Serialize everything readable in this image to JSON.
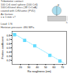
{
  "chart_data": {
    "type": "scatter",
    "xlabel": "Rα roughness (nm)",
    "ylabel": "Friction coefficient",
    "annotations": [
      "Tribometer contact:\n100 Cr6 steel sphere (100 Cr6)\n100Cr6/steel discs (38 CrCoA)\ncoated with CrN/some (PVD)\nAir friction:\nv = 1 mm·s⁻¹\n\nLoad: 1 N\nHertzian pressure: 480 MPa",
      "F",
      "h"
    ],
    "xlim": [
      10,
      75
    ],
    "ylim": [
      0.1,
      0.9
    ],
    "xticks": [
      20,
      30,
      40,
      50,
      60,
      70
    ],
    "yticks": [
      0.2,
      0.3,
      0.4,
      0.5,
      0.6,
      0.7,
      0.8
    ],
    "series": [
      {
        "type": "line",
        "x": [
          10,
          72
        ],
        "values": [
          0.87,
          0.13
        ],
        "color": "#66ddff",
        "line_style": "dashed"
      },
      {
        "type": "scatter",
        "x": [
          13,
          25,
          37,
          55,
          67
        ],
        "values": [
          0.82,
          0.68,
          0.55,
          0.32,
          0.18
        ],
        "color": "#66ddff",
        "marker": "square"
      }
    ]
  }
}
